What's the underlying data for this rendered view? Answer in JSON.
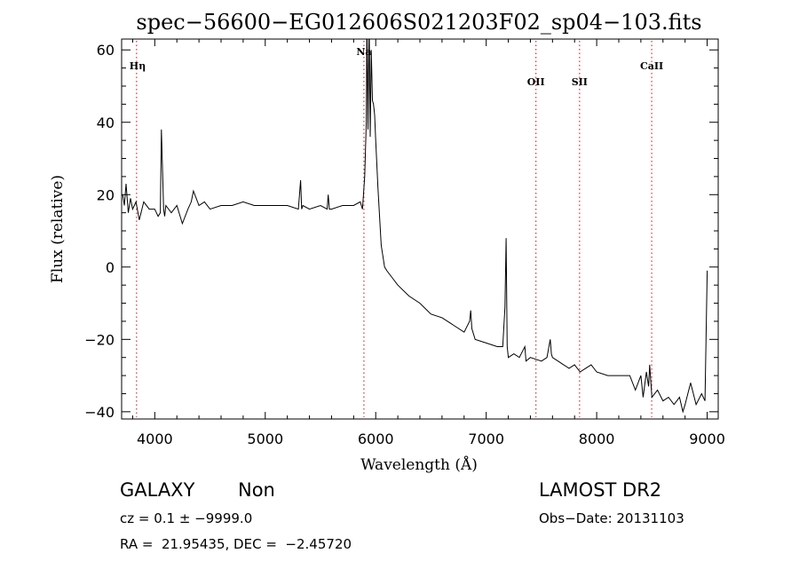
{
  "chart_data": {
    "type": "line",
    "title": "spec−56600−EG012606S021203F02_sp04−103.fits",
    "xlabel": "Wavelength (Å)",
    "ylabel": "Flux (relative)",
    "xlim": [
      3700,
      9100
    ],
    "ylim": [
      -42,
      63
    ],
    "xticks": [
      {
        "value": 4000,
        "label": "4000"
      },
      {
        "value": 5000,
        "label": "5000"
      },
      {
        "value": 6000,
        "label": "6000"
      },
      {
        "value": 7000,
        "label": "7000"
      },
      {
        "value": 8000,
        "label": "8000"
      },
      {
        "value": 9000,
        "label": "9000"
      }
    ],
    "yticks": [
      {
        "value": 60,
        "label": "60"
      },
      {
        "value": 40,
        "label": "40"
      },
      {
        "value": 20,
        "label": "20"
      },
      {
        "value": 0,
        "label": "0"
      },
      {
        "value": -20,
        "label": "−20"
      },
      {
        "value": -40,
        "label": "−40"
      }
    ],
    "line_markers": [
      {
        "label": "Hη",
        "x": 3835
      },
      {
        "label": "Na",
        "x": 5893
      },
      {
        "label": "OII",
        "x": 7450
      },
      {
        "label": "SII",
        "x": 7845
      },
      {
        "label": "CaII",
        "x": 8498
      }
    ],
    "marker_color": "#e03030",
    "series": [
      {
        "color": "#000000",
        "x": [
          3710,
          3725,
          3740,
          3760,
          3780,
          3800,
          3830,
          3860,
          3900,
          3950,
          4000,
          4030,
          4050,
          4060,
          4080,
          4090,
          4100,
          4150,
          4200,
          4250,
          4300,
          4330,
          4350,
          4400,
          4450,
          4500,
          4600,
          4700,
          4800,
          4900,
          5000,
          5100,
          5200,
          5300,
          5320,
          5330,
          5340,
          5400,
          5500,
          5560,
          5570,
          5580,
          5600,
          5700,
          5800,
          5860,
          5880,
          5900,
          5915,
          5920,
          5930,
          5940,
          5950,
          5960,
          5970,
          5980,
          5990,
          6000,
          6020,
          6050,
          6080,
          6100,
          6150,
          6200,
          6300,
          6400,
          6500,
          6600,
          6700,
          6800,
          6850,
          6860,
          6870,
          6900,
          7000,
          7100,
          7150,
          7170,
          7180,
          7190,
          7200,
          7250,
          7300,
          7350,
          7360,
          7400,
          7500,
          7550,
          7580,
          7590,
          7600,
          7650,
          7700,
          7750,
          7800,
          7850,
          7900,
          7950,
          8000,
          8100,
          8200,
          8300,
          8350,
          8400,
          8420,
          8450,
          8470,
          8480,
          8500,
          8550,
          8600,
          8650,
          8700,
          8750,
          8780,
          8800,
          8850,
          8900,
          8950,
          8980,
          9000
        ],
        "y": [
          20,
          17,
          23,
          15,
          19,
          16,
          18,
          13,
          18,
          16,
          16,
          14,
          15,
          38,
          16,
          14,
          17,
          15,
          17,
          12,
          16,
          18,
          21,
          17,
          18,
          16,
          17,
          17,
          18,
          17,
          17,
          17,
          17,
          16,
          24,
          16,
          17,
          16,
          17,
          16,
          20,
          16,
          16,
          17,
          17,
          18,
          16,
          25,
          40,
          70,
          38,
          68,
          36,
          60,
          46,
          45,
          42,
          35,
          22,
          6,
          0,
          -1,
          -3,
          -5,
          -8,
          -10,
          -13,
          -14,
          -16,
          -18,
          -15,
          -12,
          -17,
          -20,
          -21,
          -22,
          -22,
          -11,
          8,
          -22,
          -25,
          -24,
          -25,
          -22,
          -26,
          -25,
          -26,
          -25,
          -20,
          -24,
          -25,
          -26,
          -27,
          -28,
          -27,
          -29,
          -28,
          -27,
          -29,
          -30,
          -30,
          -30,
          -34,
          -30,
          -36,
          -29,
          -33,
          -27,
          -36,
          -34,
          -37,
          -36,
          -38,
          -36,
          -40,
          -38,
          -32,
          -38,
          -35,
          -37,
          -1
        ]
      }
    ]
  },
  "info": {
    "class_label": "GALAXY",
    "subclass_label": "Non",
    "survey": "LAMOST DR2",
    "redshift_line": "cz = 0.1 ± −9999.0",
    "obs_date": "Obs−Date: 20131103",
    "coords_line": "RA =  21.95435, DEC =  −2.45720"
  }
}
